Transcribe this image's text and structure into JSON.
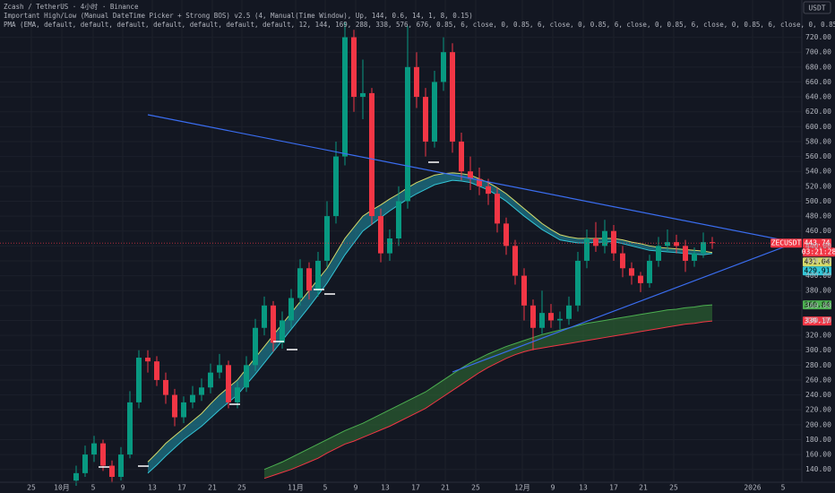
{
  "chart_data": {
    "type": "candlestick",
    "header": [
      "Zcash / TetherUS · 4小时 · Binance",
      "Important High/Low (Manual DateTime Picker + Strong BOS) v2.5 (4, Manual(Time Window), Up, 144, 0.6, 14, 1, 8, 0.15)",
      "PMA (EMA, default, default, default, default, default, default, default, 12, 144, 169, 288, 338, 576, 676, 0.85, 6, close, 0, 0.85, 6, close, 0, 0.85, 6, close, 0, 0.85, 6, close, 0, 0.85, 6, close, 0, 0.85, 6, close, 0, 0.85, 6, close, 0"
    ],
    "currency": "USDT",
    "symbol_tag": "ZECUSDT",
    "countdown": "03:21:28",
    "categories": [
      "25",
      "10月",
      "5",
      "9",
      "13",
      "17",
      "21",
      "25",
      "11月",
      "5",
      "9",
      "13",
      "17",
      "21",
      "25",
      "12月",
      "9",
      "13",
      "17",
      "21",
      "25",
      "2026",
      "5"
    ],
    "up_color": "#089981",
    "down_color": "#f23645",
    "open": [
      125,
      135,
      160,
      175,
      145,
      130,
      160,
      230,
      290,
      285,
      260,
      240,
      210,
      230,
      240,
      250,
      270,
      280,
      230,
      250,
      280,
      330,
      360,
      310,
      340,
      370,
      410,
      380,
      420,
      480,
      560,
      720,
      640,
      645,
      480,
      430,
      450,
      500,
      680,
      640,
      580,
      660,
      700,
      580,
      540,
      530,
      520,
      510,
      470,
      440,
      400,
      360,
      330,
      350,
      340,
      342,
      360,
      420,
      450,
      440,
      460,
      430,
      410,
      400,
      390,
      420,
      440,
      445,
      440,
      420,
      430,
      445
    ],
    "high": [
      145,
      172,
      185,
      180,
      152,
      170,
      245,
      300,
      300,
      292,
      270,
      248,
      238,
      252,
      262,
      282,
      295,
      286,
      258,
      292,
      342,
      372,
      366,
      352,
      382,
      422,
      418,
      432,
      500,
      580,
      740,
      730,
      690,
      652,
      490,
      462,
      520,
      735,
      700,
      652,
      675,
      720,
      712,
      592,
      560,
      545,
      530,
      518,
      478,
      448,
      410,
      368,
      380,
      362,
      352,
      372,
      432,
      462,
      472,
      475,
      468,
      440,
      418,
      405,
      428,
      452,
      462,
      455,
      448,
      438,
      458,
      452
    ],
    "low": [
      118,
      130,
      150,
      138,
      122,
      125,
      155,
      222,
      270,
      252,
      228,
      198,
      202,
      222,
      232,
      242,
      262,
      222,
      222,
      244,
      272,
      320,
      298,
      302,
      330,
      360,
      368,
      372,
      412,
      470,
      548,
      620,
      610,
      468,
      418,
      420,
      440,
      490,
      625,
      560,
      572,
      648,
      565,
      528,
      515,
      508,
      495,
      458,
      428,
      388,
      340,
      300,
      322,
      330,
      328,
      334,
      352,
      410,
      432,
      430,
      420,
      398,
      388,
      378,
      384,
      412,
      432,
      430,
      405,
      412,
      424,
      436
    ],
    "close": [
      135,
      160,
      175,
      145,
      130,
      160,
      230,
      290,
      285,
      260,
      240,
      210,
      230,
      240,
      250,
      270,
      280,
      230,
      250,
      280,
      330,
      360,
      310,
      340,
      370,
      410,
      380,
      420,
      480,
      560,
      720,
      640,
      645,
      480,
      430,
      450,
      500,
      680,
      640,
      580,
      660,
      700,
      580,
      540,
      530,
      520,
      510,
      470,
      440,
      400,
      360,
      330,
      350,
      340,
      342,
      360,
      420,
      450,
      440,
      460,
      430,
      410,
      400,
      390,
      420,
      440,
      445,
      440,
      420,
      430,
      445,
      443.74
    ],
    "bands": [
      {
        "fill": "#1f8aa0",
        "upper_color": "#d4d96a",
        "lower_color": "#33c5d6",
        "upper": [
          null,
          null,
          null,
          null,
          null,
          null,
          null,
          null,
          150,
          162,
          175,
          185,
          195,
          205,
          215,
          228,
          240,
          250,
          260,
          275,
          290,
          305,
          320,
          335,
          350,
          365,
          380,
          395,
          410,
          430,
          450,
          465,
          480,
          488,
          495,
          503,
          510,
          518,
          525,
          530,
          535,
          537,
          538,
          537,
          535,
          530,
          525,
          518,
          510,
          500,
          490,
          480,
          470,
          462,
          455,
          452,
          450,
          450,
          450,
          450,
          450,
          448,
          445,
          443,
          440,
          438,
          437,
          436,
          435,
          434,
          433,
          431.04
        ],
        "lower": [
          null,
          null,
          null,
          null,
          null,
          null,
          null,
          null,
          135,
          146,
          158,
          169,
          180,
          189,
          198,
          209,
          220,
          230,
          240,
          254,
          268,
          283,
          298,
          313,
          328,
          343,
          358,
          374,
          390,
          409,
          428,
          444,
          460,
          469,
          478,
          487,
          495,
          503,
          510,
          516,
          522,
          525,
          528,
          527,
          525,
          520,
          515,
          508,
          500,
          490,
          480,
          471,
          462,
          455,
          448,
          446,
          444,
          444,
          445,
          445,
          446,
          443,
          440,
          437,
          434,
          433,
          432,
          431,
          430,
          429,
          428,
          429.91
        ]
      },
      {
        "fill": "#2f6b34",
        "upper_color": "#4caf50",
        "lower_color": "#f23645",
        "upper": [
          null,
          null,
          null,
          null,
          null,
          null,
          null,
          null,
          null,
          null,
          null,
          null,
          null,
          null,
          null,
          null,
          null,
          null,
          null,
          null,
          null,
          140,
          145,
          150,
          156,
          162,
          168,
          174,
          180,
          186,
          192,
          197,
          202,
          208,
          214,
          220,
          226,
          232,
          238,
          244,
          252,
          260,
          268,
          276,
          283,
          289,
          295,
          300,
          305,
          309,
          313,
          317,
          321,
          324,
          327,
          330,
          333,
          336,
          338,
          340,
          342,
          344,
          346,
          348,
          350,
          352,
          354,
          355,
          357,
          358,
          360,
          360.84
        ],
        "lower": [
          null,
          null,
          null,
          null,
          null,
          null,
          null,
          null,
          null,
          null,
          null,
          null,
          null,
          null,
          null,
          null,
          null,
          null,
          null,
          null,
          null,
          128,
          132,
          136,
          140,
          145,
          150,
          155,
          162,
          168,
          174,
          178,
          183,
          188,
          193,
          198,
          204,
          210,
          216,
          222,
          230,
          238,
          246,
          254,
          262,
          270,
          277,
          283,
          289,
          294,
          298,
          301,
          303,
          305,
          307,
          309,
          311,
          313,
          315,
          317,
          319,
          321,
          323,
          325,
          327,
          329,
          331,
          333,
          335,
          336,
          338,
          339.17
        ]
      }
    ],
    "ylim": [
      124,
      770
    ],
    "yticks": [
      {
        "value": 140,
        "label": "140.00"
      },
      {
        "value": 160,
        "label": "160.00"
      },
      {
        "value": 180,
        "label": "180.00"
      },
      {
        "value": 200,
        "label": "200.00"
      },
      {
        "value": 220,
        "label": "220.00"
      },
      {
        "value": 240,
        "label": "240.00"
      },
      {
        "value": 260,
        "label": "260.00"
      },
      {
        "value": 280,
        "label": "280.00"
      },
      {
        "value": 300,
        "label": "300.00"
      },
      {
        "value": 320,
        "label": "320.00"
      },
      {
        "value": 340,
        "label": "340.00"
      },
      {
        "value": 360,
        "label": "360.00"
      },
      {
        "value": 380,
        "label": "380.00"
      },
      {
        "value": 400,
        "label": "400.00"
      },
      {
        "value": 420,
        "label": "420.00"
      },
      {
        "value": 440,
        "label": "440.00"
      },
      {
        "value": 460,
        "label": "460.00"
      },
      {
        "value": 480,
        "label": "480.00"
      },
      {
        "value": 500,
        "label": "500.00"
      },
      {
        "value": 520,
        "label": "520.00"
      },
      {
        "value": 540,
        "label": "540.00"
      },
      {
        "value": 560,
        "label": "560.00"
      },
      {
        "value": 580,
        "label": "580.00"
      },
      {
        "value": 600,
        "label": "600.00"
      },
      {
        "value": 620,
        "label": "620.00"
      },
      {
        "value": 640,
        "label": "640.00"
      },
      {
        "value": 660,
        "label": "660.00"
      },
      {
        "value": 680,
        "label": "680.00"
      },
      {
        "value": 700,
        "label": "700.00"
      },
      {
        "value": 720,
        "label": "720.00"
      }
    ],
    "grid": true
  }
}
